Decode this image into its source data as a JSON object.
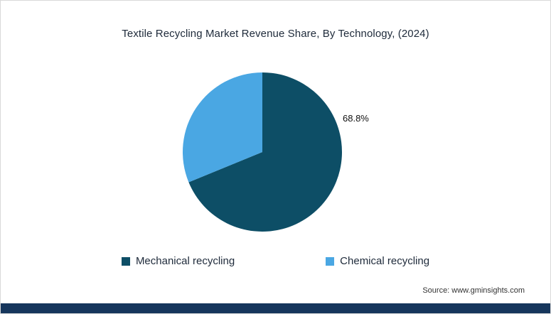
{
  "chart_data": {
    "type": "pie",
    "title": "Textile Recycling Market Revenue Share, By Technology, (2024)",
    "slices": [
      {
        "label": "Mechanical recycling",
        "value": 68.8,
        "color": "#0d4e66"
      },
      {
        "label": "Chemical recycling",
        "value": 31.2,
        "color": "#4aa7e3"
      }
    ],
    "data_label": "68.8%",
    "start_angle_deg": 0,
    "direction": "clockwise",
    "legend_position": "bottom",
    "background": "#ffffff"
  },
  "footer": {
    "source_text": "Source: www.gminsights.com",
    "bar_color": "#16365c"
  }
}
